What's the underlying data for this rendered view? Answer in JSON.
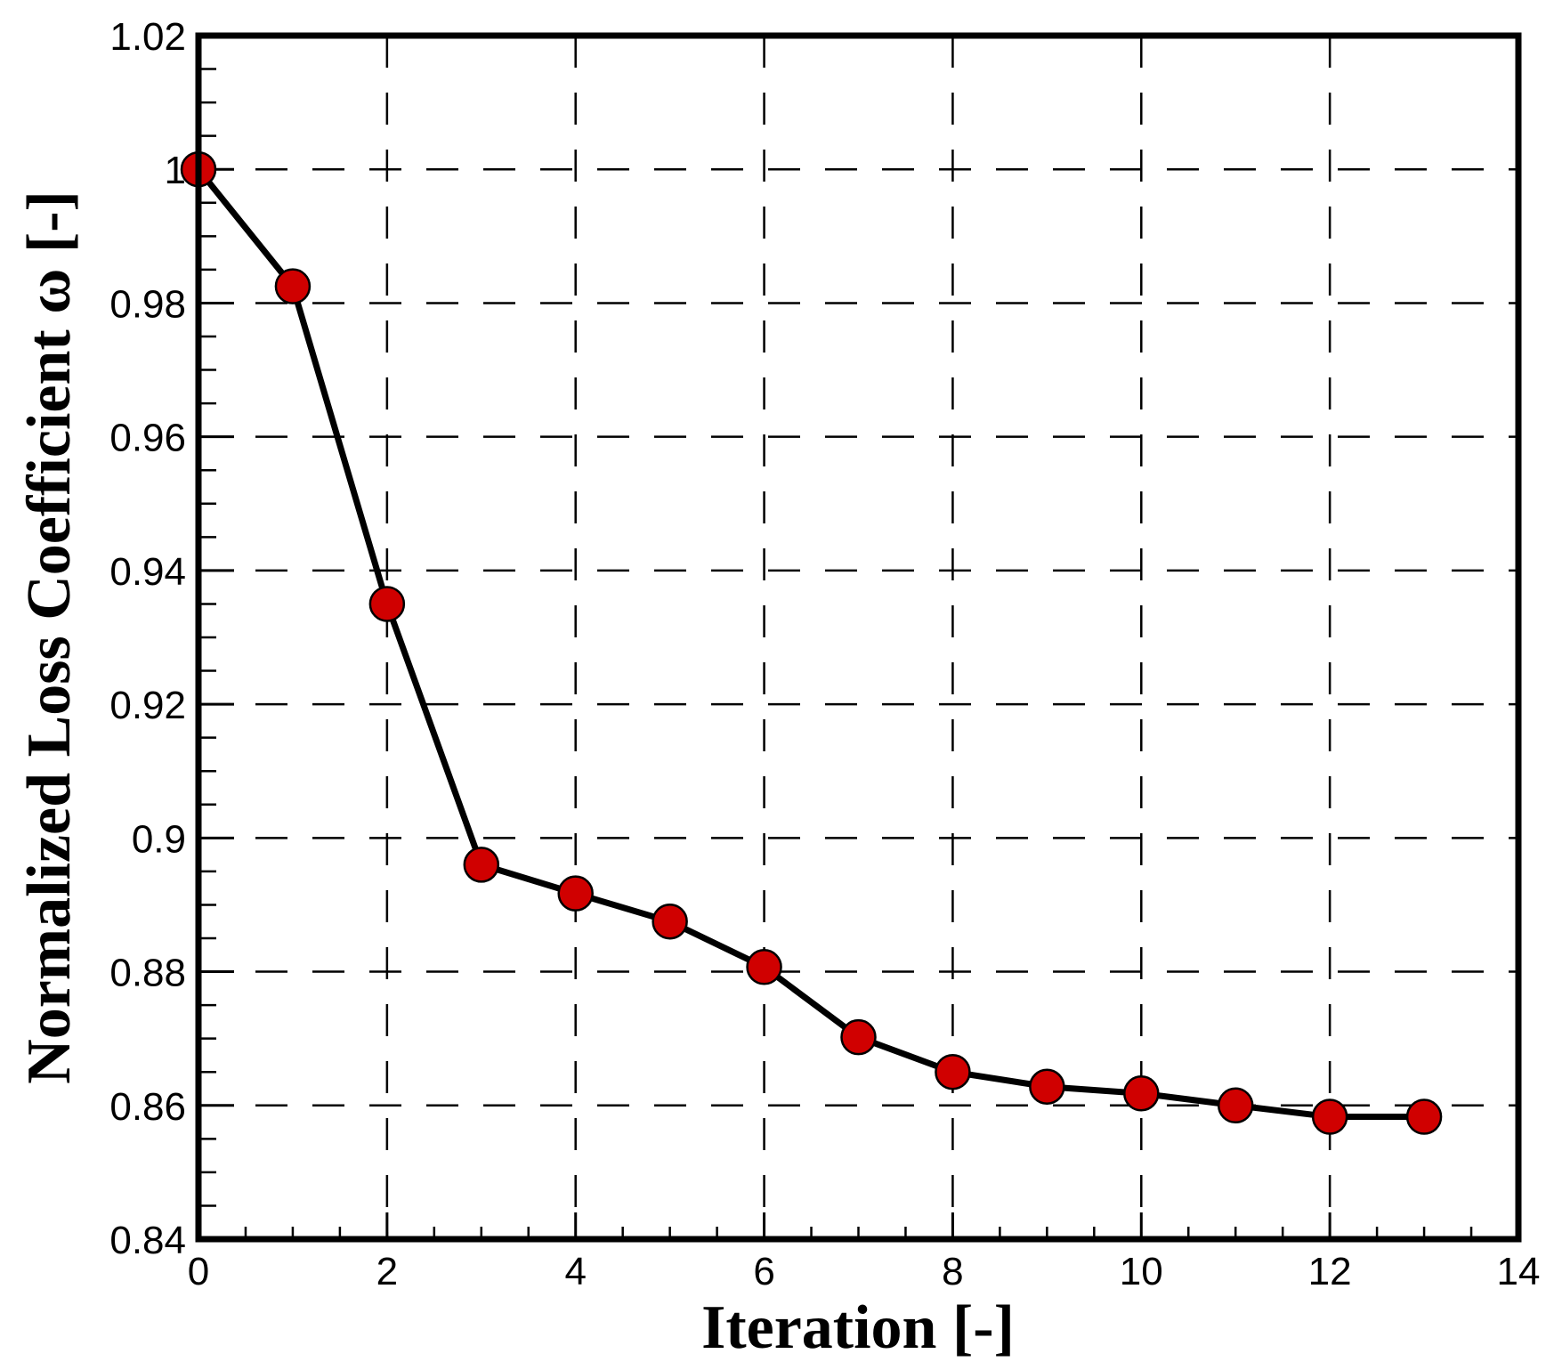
{
  "chart_data": {
    "type": "line",
    "title": "",
    "xlabel": "Iteration [-]",
    "ylabel": "Normalized Loss Coefficient ω [-]",
    "xlim": [
      0,
      14
    ],
    "ylim": [
      0.84,
      1.02
    ],
    "xticks": [
      0,
      2,
      4,
      6,
      8,
      10,
      12,
      14
    ],
    "xtick_labels": [
      "0",
      "2",
      "4",
      "6",
      "8",
      "10",
      "12",
      "14"
    ],
    "yticks": [
      0.84,
      0.86,
      0.88,
      0.9,
      0.92,
      0.94,
      0.96,
      0.98,
      1.0,
      1.02
    ],
    "ytick_labels": [
      "0.84",
      "0.86",
      "0.88",
      "0.9",
      "0.92",
      "0.94",
      "0.96",
      "0.98",
      "1",
      "1.02"
    ],
    "grid": true,
    "grid_style": "dashed",
    "series": [
      {
        "x": [
          0,
          1,
          2,
          3,
          4,
          5,
          6,
          7,
          8,
          9,
          10,
          11,
          12,
          13
        ],
        "y": [
          1.0,
          0.9825,
          0.935,
          0.896,
          0.8917,
          0.8875,
          0.8807,
          0.8702,
          0.865,
          0.8628,
          0.8618,
          0.86,
          0.8583,
          0.8583
        ],
        "line_color": "#000000",
        "marker_color": "#d00000",
        "marker_edge": "#000000"
      }
    ]
  }
}
